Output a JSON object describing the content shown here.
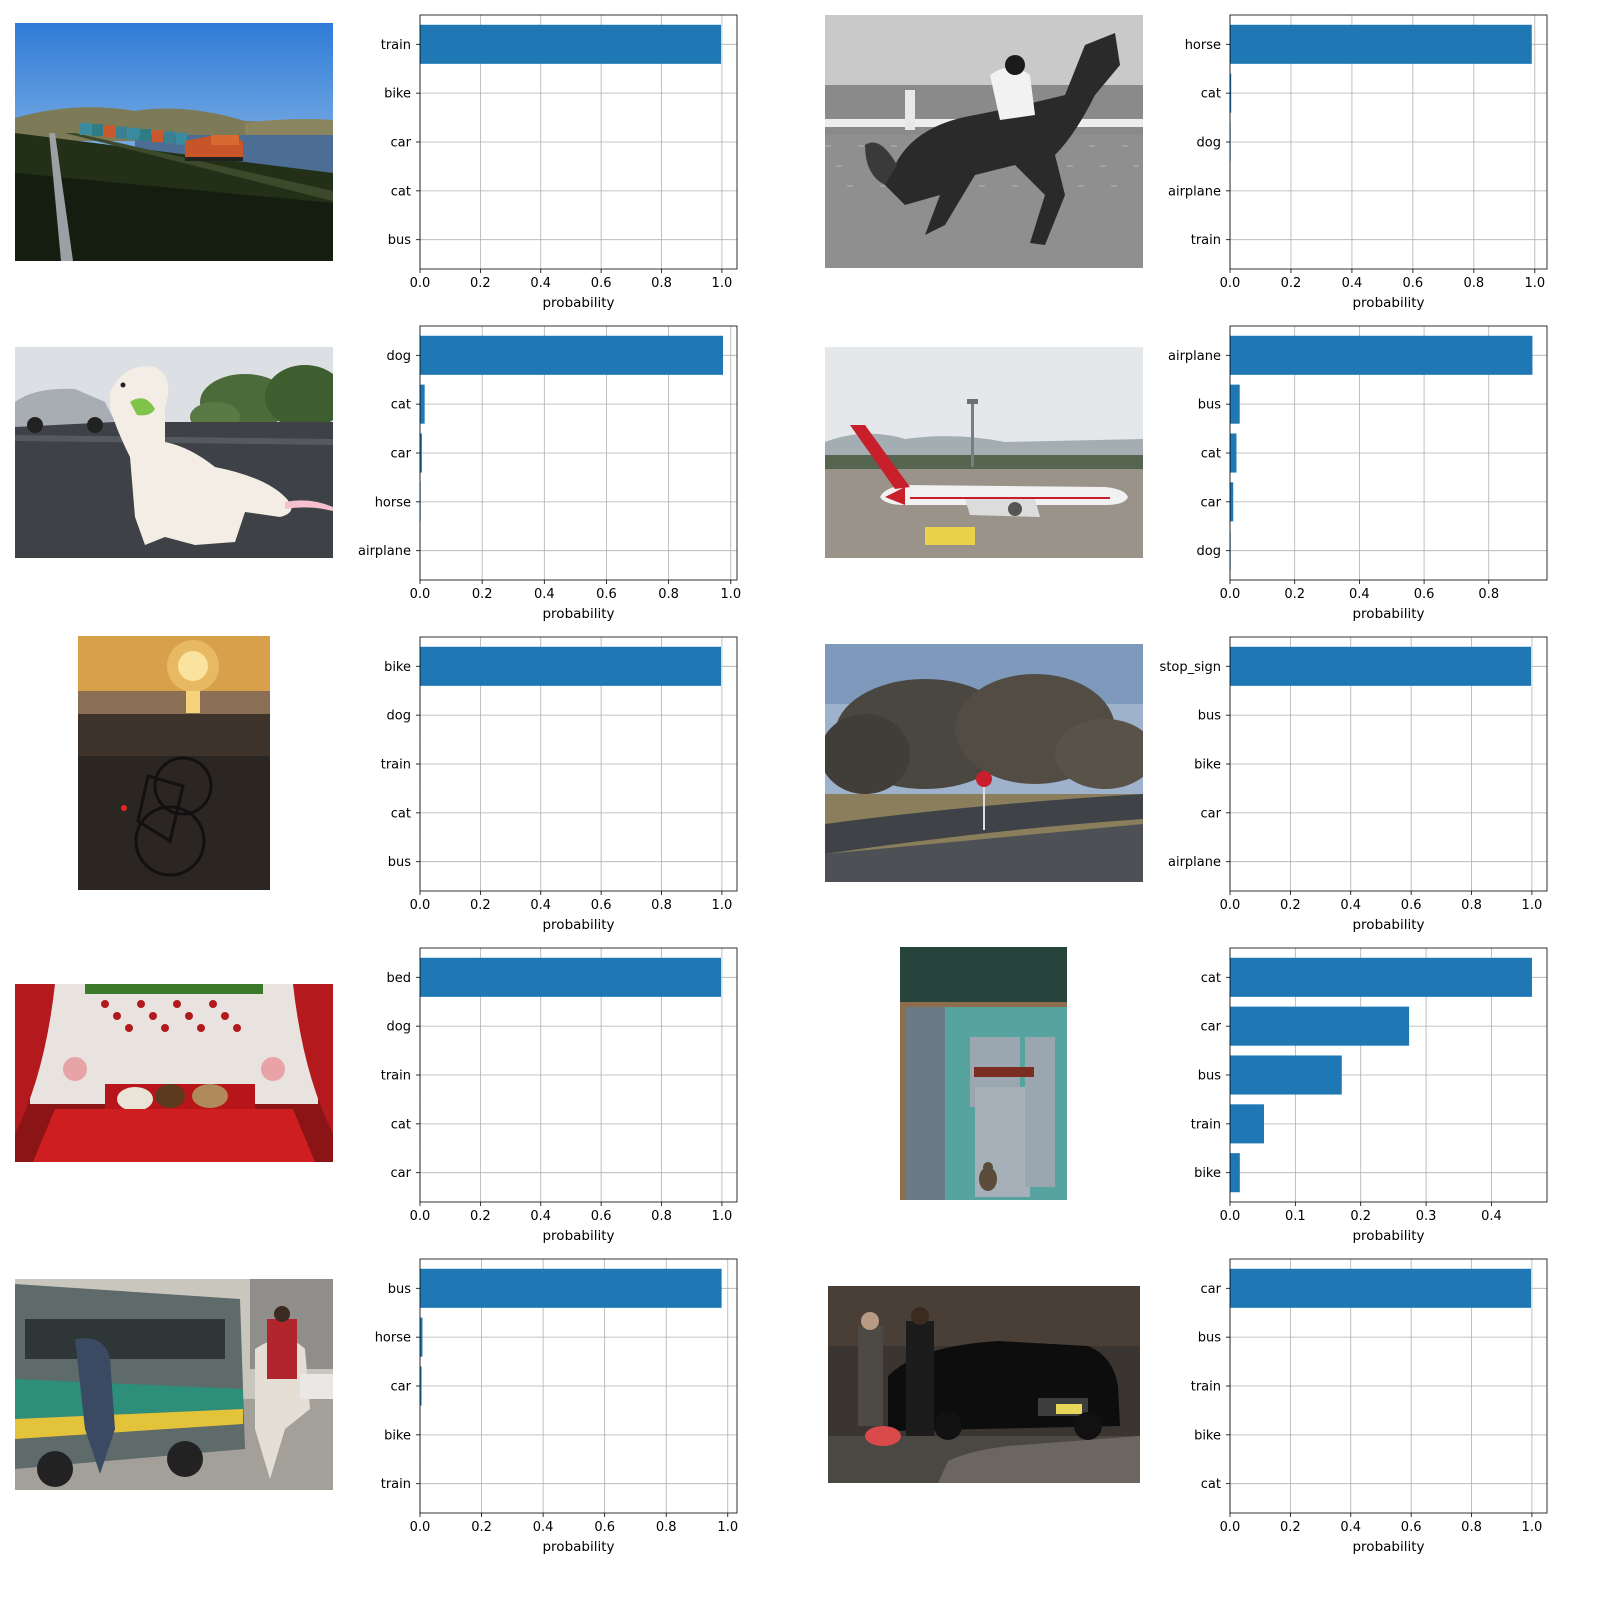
{
  "figure": {
    "xlabel": "probability"
  },
  "chart_data": [
    {
      "type": "bar",
      "orientation": "horizontal",
      "categories": [
        "train",
        "bike",
        "car",
        "cat",
        "bus"
      ],
      "values": [
        0.997,
        0.001,
        0.001,
        0.0005,
        0.0005
      ],
      "xlim": [
        0,
        1.05
      ],
      "xticks": [
        "0.0",
        "0.2",
        "0.4",
        "0.6",
        "0.8",
        "1.0"
      ],
      "xlabel": "probability",
      "grid": true,
      "color": "#1f77b4",
      "photo": "train"
    },
    {
      "type": "bar",
      "orientation": "horizontal",
      "categories": [
        "horse",
        "cat",
        "dog",
        "airplane",
        "train"
      ],
      "values": [
        0.99,
        0.004,
        0.002,
        0.001,
        0.001
      ],
      "xlim": [
        0,
        1.04
      ],
      "xticks": [
        "0.0",
        "0.2",
        "0.4",
        "0.6",
        "0.8",
        "1.0"
      ],
      "xlabel": "probability",
      "grid": true,
      "color": "#1f77b4",
      "photo": "horse"
    },
    {
      "type": "bar",
      "orientation": "horizontal",
      "categories": [
        "dog",
        "cat",
        "car",
        "horse",
        "airplane"
      ],
      "values": [
        0.975,
        0.015,
        0.006,
        0.002,
        0.001
      ],
      "xlim": [
        0,
        1.02
      ],
      "xticks": [
        "0.0",
        "0.2",
        "0.4",
        "0.6",
        "0.8",
        "1.0"
      ],
      "xlabel": "probability",
      "grid": true,
      "color": "#1f77b4",
      "photo": "dog"
    },
    {
      "type": "bar",
      "orientation": "horizontal",
      "categories": [
        "airplane",
        "bus",
        "cat",
        "car",
        "dog"
      ],
      "values": [
        0.935,
        0.03,
        0.02,
        0.01,
        0.002
      ],
      "xlim": [
        0,
        0.98
      ],
      "xticks": [
        "0.0",
        "0.2",
        "0.4",
        "0.6",
        "0.8"
      ],
      "xlabel": "probability",
      "grid": true,
      "color": "#1f77b4",
      "photo": "airplane"
    },
    {
      "type": "bar",
      "orientation": "horizontal",
      "categories": [
        "bike",
        "dog",
        "train",
        "cat",
        "bus"
      ],
      "values": [
        0.997,
        0.001,
        0.001,
        0.0005,
        0.0005
      ],
      "xlim": [
        0,
        1.05
      ],
      "xticks": [
        "0.0",
        "0.2",
        "0.4",
        "0.6",
        "0.8",
        "1.0"
      ],
      "xlabel": "probability",
      "grid": true,
      "color": "#1f77b4",
      "photo": "bike"
    },
    {
      "type": "bar",
      "orientation": "horizontal",
      "categories": [
        "stop_sign",
        "bus",
        "bike",
        "car",
        "airplane"
      ],
      "values": [
        0.997,
        0.001,
        0.001,
        0.0005,
        0.0005
      ],
      "xlim": [
        0,
        1.05
      ],
      "xticks": [
        "0.0",
        "0.2",
        "0.4",
        "0.6",
        "0.8",
        "1.0"
      ],
      "xlabel": "probability",
      "grid": true,
      "color": "#1f77b4",
      "photo": "stop_sign"
    },
    {
      "type": "bar",
      "orientation": "horizontal",
      "categories": [
        "bed",
        "dog",
        "train",
        "cat",
        "car"
      ],
      "values": [
        0.997,
        0.001,
        0.001,
        0.0005,
        0.0005
      ],
      "xlim": [
        0,
        1.05
      ],
      "xticks": [
        "0.0",
        "0.2",
        "0.4",
        "0.6",
        "0.8",
        "1.0"
      ],
      "xlabel": "probability",
      "grid": true,
      "color": "#1f77b4",
      "photo": "bed"
    },
    {
      "type": "bar",
      "orientation": "horizontal",
      "categories": [
        "cat",
        "car",
        "bus",
        "train",
        "bike"
      ],
      "values": [
        0.462,
        0.274,
        0.171,
        0.052,
        0.015
      ],
      "xlim": [
        0,
        0.485
      ],
      "xticks": [
        "0.0",
        "0.1",
        "0.2",
        "0.3",
        "0.4"
      ],
      "xlabel": "probability",
      "grid": true,
      "color": "#1f77b4",
      "photo": "cat"
    },
    {
      "type": "bar",
      "orientation": "horizontal",
      "categories": [
        "bus",
        "horse",
        "car",
        "bike",
        "train"
      ],
      "values": [
        0.98,
        0.008,
        0.005,
        0.001,
        0.001
      ],
      "xlim": [
        0,
        1.03
      ],
      "xticks": [
        "0.0",
        "0.2",
        "0.4",
        "0.6",
        "0.8",
        "1.0"
      ],
      "xlabel": "probability",
      "grid": true,
      "color": "#1f77b4",
      "photo": "bus"
    },
    {
      "type": "bar",
      "orientation": "horizontal",
      "categories": [
        "car",
        "bus",
        "train",
        "bike",
        "cat"
      ],
      "values": [
        0.997,
        0.001,
        0.001,
        0.0005,
        0.0005
      ],
      "xlim": [
        0,
        1.05
      ],
      "xticks": [
        "0.0",
        "0.2",
        "0.4",
        "0.6",
        "0.8",
        "1.0"
      ],
      "xlabel": "probability",
      "grid": true,
      "color": "#1f77b4",
      "photo": "car"
    }
  ]
}
